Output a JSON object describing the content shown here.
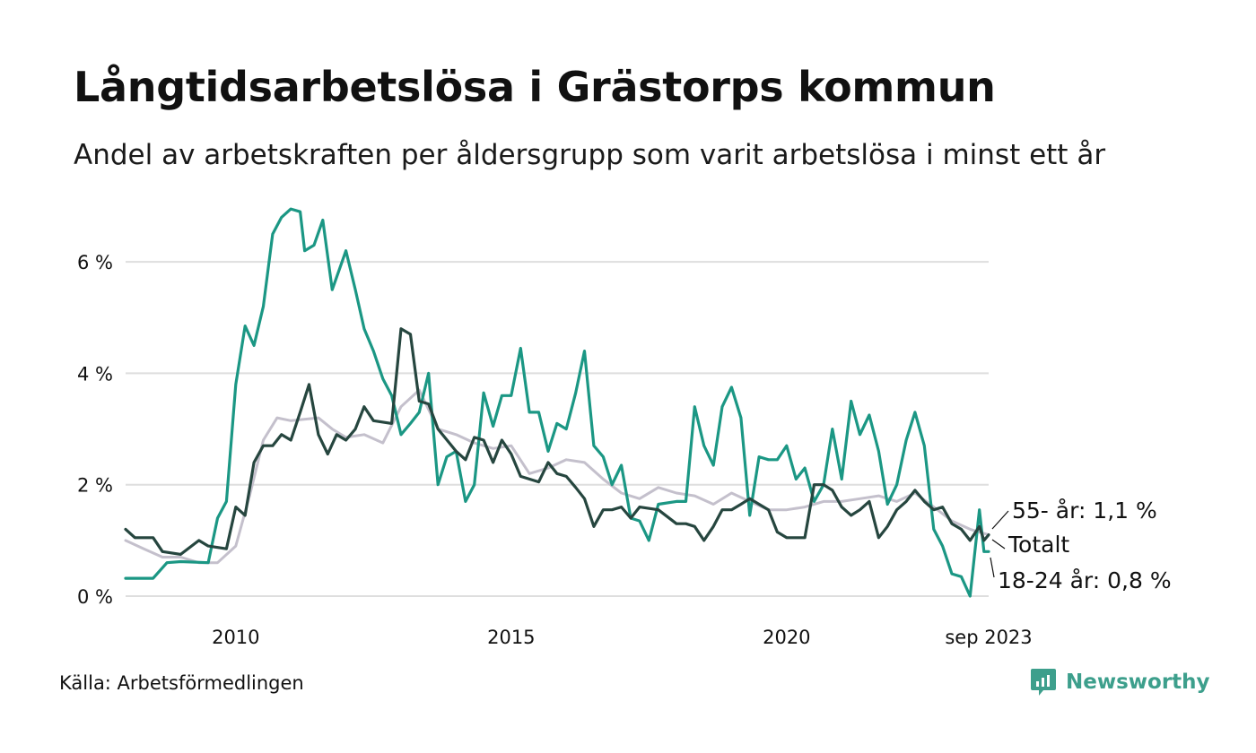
{
  "title": "Långtidsarbetslösa i Grästorps kommun",
  "subtitle": "Andel av arbetskraften per åldersgrupp som varit arbetslösa i minst ett år",
  "source": "Källa: Arbetsförmedlingen",
  "brand": "Newsworthy",
  "colors": {
    "youth": "#1b9784",
    "total": "#26463f",
    "senior": "#c4c0cc",
    "grid": "#dedede",
    "brand": "#3d9f8c"
  },
  "chart_data": {
    "type": "line",
    "x_range": [
      2008.0,
      2023.667
    ],
    "ylim": [
      0,
      7
    ],
    "yticks": [
      0,
      2,
      4,
      6
    ],
    "ytick_labels": [
      "0 %",
      "2 %",
      "4 %",
      "6 %"
    ],
    "xticks": [
      2010,
      2015,
      2020,
      2023.667
    ],
    "xtick_labels": [
      "2010",
      "2015",
      "2020",
      "sep 2023"
    ],
    "series": [
      {
        "name": "55- år",
        "label": "55- år: 1,1 %",
        "color_key": "senior",
        "points": [
          [
            2008.0,
            1.0
          ],
          [
            2008.33,
            0.85
          ],
          [
            2008.67,
            0.7
          ],
          [
            2009.0,
            0.7
          ],
          [
            2009.33,
            0.6
          ],
          [
            2009.67,
            0.6
          ],
          [
            2010.0,
            0.9
          ],
          [
            2010.25,
            1.8
          ],
          [
            2010.5,
            2.8
          ],
          [
            2010.75,
            3.2
          ],
          [
            2011.0,
            3.15
          ],
          [
            2011.5,
            3.2
          ],
          [
            2011.75,
            3.0
          ],
          [
            2012.0,
            2.85
          ],
          [
            2012.33,
            2.9
          ],
          [
            2012.67,
            2.75
          ],
          [
            2013.0,
            3.4
          ],
          [
            2013.33,
            3.7
          ],
          [
            2013.67,
            3.0
          ],
          [
            2014.0,
            2.9
          ],
          [
            2014.33,
            2.75
          ],
          [
            2014.67,
            2.65
          ],
          [
            2015.0,
            2.7
          ],
          [
            2015.33,
            2.2
          ],
          [
            2015.67,
            2.3
          ],
          [
            2016.0,
            2.45
          ],
          [
            2016.33,
            2.4
          ],
          [
            2016.67,
            2.1
          ],
          [
            2017.0,
            1.85
          ],
          [
            2017.33,
            1.75
          ],
          [
            2017.67,
            1.95
          ],
          [
            2018.0,
            1.85
          ],
          [
            2018.33,
            1.8
          ],
          [
            2018.67,
            1.65
          ],
          [
            2019.0,
            1.85
          ],
          [
            2019.33,
            1.7
          ],
          [
            2019.67,
            1.55
          ],
          [
            2020.0,
            1.55
          ],
          [
            2020.33,
            1.6
          ],
          [
            2020.67,
            1.7
          ],
          [
            2021.0,
            1.7
          ],
          [
            2021.33,
            1.75
          ],
          [
            2021.67,
            1.8
          ],
          [
            2022.0,
            1.7
          ],
          [
            2022.33,
            1.85
          ],
          [
            2022.67,
            1.6
          ],
          [
            2023.0,
            1.35
          ],
          [
            2023.33,
            1.2
          ],
          [
            2023.667,
            1.1
          ]
        ]
      },
      {
        "name": "18-24 år",
        "label": "18-24 år: 0,8 %",
        "color_key": "youth",
        "points": [
          [
            2008.0,
            0.32
          ],
          [
            2008.5,
            0.32
          ],
          [
            2008.75,
            0.6
          ],
          [
            2009.0,
            0.62
          ],
          [
            2009.5,
            0.6
          ],
          [
            2009.67,
            1.4
          ],
          [
            2009.83,
            1.7
          ],
          [
            2010.0,
            3.8
          ],
          [
            2010.17,
            4.85
          ],
          [
            2010.33,
            4.5
          ],
          [
            2010.5,
            5.2
          ],
          [
            2010.67,
            6.5
          ],
          [
            2010.83,
            6.8
          ],
          [
            2011.0,
            6.95
          ],
          [
            2011.17,
            6.9
          ],
          [
            2011.25,
            6.2
          ],
          [
            2011.42,
            6.3
          ],
          [
            2011.58,
            6.75
          ],
          [
            2011.75,
            5.5
          ],
          [
            2012.0,
            6.2
          ],
          [
            2012.17,
            5.5
          ],
          [
            2012.33,
            4.8
          ],
          [
            2012.5,
            4.4
          ],
          [
            2012.67,
            3.9
          ],
          [
            2012.83,
            3.6
          ],
          [
            2013.0,
            2.9
          ],
          [
            2013.17,
            3.1
          ],
          [
            2013.33,
            3.3
          ],
          [
            2013.5,
            4.0
          ],
          [
            2013.67,
            2.0
          ],
          [
            2013.83,
            2.5
          ],
          [
            2014.0,
            2.6
          ],
          [
            2014.17,
            1.7
          ],
          [
            2014.33,
            2.0
          ],
          [
            2014.5,
            3.65
          ],
          [
            2014.67,
            3.05
          ],
          [
            2014.83,
            3.6
          ],
          [
            2015.0,
            3.6
          ],
          [
            2015.17,
            4.45
          ],
          [
            2015.33,
            3.3
          ],
          [
            2015.5,
            3.3
          ],
          [
            2015.67,
            2.6
          ],
          [
            2015.83,
            3.1
          ],
          [
            2016.0,
            3.0
          ],
          [
            2016.17,
            3.65
          ],
          [
            2016.33,
            4.4
          ],
          [
            2016.5,
            2.7
          ],
          [
            2016.67,
            2.5
          ],
          [
            2016.83,
            2.0
          ],
          [
            2017.0,
            2.35
          ],
          [
            2017.17,
            1.4
          ],
          [
            2017.33,
            1.35
          ],
          [
            2017.5,
            1.0
          ],
          [
            2017.67,
            1.65
          ],
          [
            2018.0,
            1.7
          ],
          [
            2018.17,
            1.7
          ],
          [
            2018.33,
            3.4
          ],
          [
            2018.5,
            2.7
          ],
          [
            2018.67,
            2.35
          ],
          [
            2018.83,
            3.4
          ],
          [
            2019.0,
            3.75
          ],
          [
            2019.17,
            3.2
          ],
          [
            2019.33,
            1.45
          ],
          [
            2019.5,
            2.5
          ],
          [
            2019.67,
            2.45
          ],
          [
            2019.83,
            2.45
          ],
          [
            2020.0,
            2.7
          ],
          [
            2020.17,
            2.1
          ],
          [
            2020.33,
            2.3
          ],
          [
            2020.5,
            1.7
          ],
          [
            2020.67,
            2.0
          ],
          [
            2020.83,
            3.0
          ],
          [
            2021.0,
            2.1
          ],
          [
            2021.17,
            3.5
          ],
          [
            2021.33,
            2.9
          ],
          [
            2021.5,
            3.25
          ],
          [
            2021.67,
            2.6
          ],
          [
            2021.83,
            1.65
          ],
          [
            2022.0,
            2.0
          ],
          [
            2022.17,
            2.8
          ],
          [
            2022.33,
            3.3
          ],
          [
            2022.5,
            2.7
          ],
          [
            2022.67,
            1.2
          ],
          [
            2022.83,
            0.9
          ],
          [
            2023.0,
            0.4
          ],
          [
            2023.17,
            0.35
          ],
          [
            2023.33,
            0.0
          ],
          [
            2023.5,
            1.55
          ],
          [
            2023.583,
            0.8
          ],
          [
            2023.667,
            0.8
          ]
        ]
      },
      {
        "name": "Totalt",
        "label": "Totalt",
        "color_key": "total",
        "points": [
          [
            2008.0,
            1.2
          ],
          [
            2008.17,
            1.05
          ],
          [
            2008.5,
            1.05
          ],
          [
            2008.67,
            0.8
          ],
          [
            2009.0,
            0.75
          ],
          [
            2009.33,
            1.0
          ],
          [
            2009.5,
            0.9
          ],
          [
            2009.83,
            0.85
          ],
          [
            2010.0,
            1.6
          ],
          [
            2010.17,
            1.45
          ],
          [
            2010.33,
            2.4
          ],
          [
            2010.5,
            2.7
          ],
          [
            2010.67,
            2.7
          ],
          [
            2010.83,
            2.9
          ],
          [
            2011.0,
            2.8
          ],
          [
            2011.17,
            3.3
          ],
          [
            2011.33,
            3.8
          ],
          [
            2011.5,
            2.9
          ],
          [
            2011.67,
            2.55
          ],
          [
            2011.83,
            2.9
          ],
          [
            2012.0,
            2.8
          ],
          [
            2012.17,
            3.0
          ],
          [
            2012.33,
            3.4
          ],
          [
            2012.5,
            3.15
          ],
          [
            2012.83,
            3.1
          ],
          [
            2013.0,
            4.8
          ],
          [
            2013.17,
            4.7
          ],
          [
            2013.33,
            3.5
          ],
          [
            2013.5,
            3.45
          ],
          [
            2013.67,
            3.0
          ],
          [
            2014.0,
            2.6
          ],
          [
            2014.17,
            2.45
          ],
          [
            2014.33,
            2.85
          ],
          [
            2014.5,
            2.8
          ],
          [
            2014.67,
            2.4
          ],
          [
            2014.83,
            2.8
          ],
          [
            2015.0,
            2.55
          ],
          [
            2015.17,
            2.15
          ],
          [
            2015.5,
            2.05
          ],
          [
            2015.67,
            2.4
          ],
          [
            2015.83,
            2.2
          ],
          [
            2016.0,
            2.15
          ],
          [
            2016.17,
            1.95
          ],
          [
            2016.33,
            1.75
          ],
          [
            2016.5,
            1.25
          ],
          [
            2016.67,
            1.55
          ],
          [
            2016.83,
            1.55
          ],
          [
            2017.0,
            1.6
          ],
          [
            2017.17,
            1.4
          ],
          [
            2017.33,
            1.6
          ],
          [
            2017.67,
            1.55
          ],
          [
            2018.0,
            1.3
          ],
          [
            2018.17,
            1.3
          ],
          [
            2018.33,
            1.25
          ],
          [
            2018.5,
            1.0
          ],
          [
            2018.67,
            1.25
          ],
          [
            2018.83,
            1.55
          ],
          [
            2019.0,
            1.55
          ],
          [
            2019.17,
            1.65
          ],
          [
            2019.33,
            1.75
          ],
          [
            2019.5,
            1.65
          ],
          [
            2019.67,
            1.55
          ],
          [
            2019.83,
            1.15
          ],
          [
            2020.0,
            1.05
          ],
          [
            2020.33,
            1.05
          ],
          [
            2020.5,
            2.0
          ],
          [
            2020.67,
            2.0
          ],
          [
            2020.83,
            1.9
          ],
          [
            2021.0,
            1.6
          ],
          [
            2021.17,
            1.45
          ],
          [
            2021.33,
            1.55
          ],
          [
            2021.5,
            1.7
          ],
          [
            2021.67,
            1.05
          ],
          [
            2021.83,
            1.25
          ],
          [
            2022.0,
            1.55
          ],
          [
            2022.17,
            1.7
          ],
          [
            2022.33,
            1.9
          ],
          [
            2022.5,
            1.7
          ],
          [
            2022.67,
            1.55
          ],
          [
            2022.83,
            1.6
          ],
          [
            2023.0,
            1.3
          ],
          [
            2023.17,
            1.2
          ],
          [
            2023.33,
            1.0
          ],
          [
            2023.5,
            1.25
          ],
          [
            2023.583,
            1.0
          ],
          [
            2023.667,
            1.1
          ]
        ]
      }
    ]
  }
}
